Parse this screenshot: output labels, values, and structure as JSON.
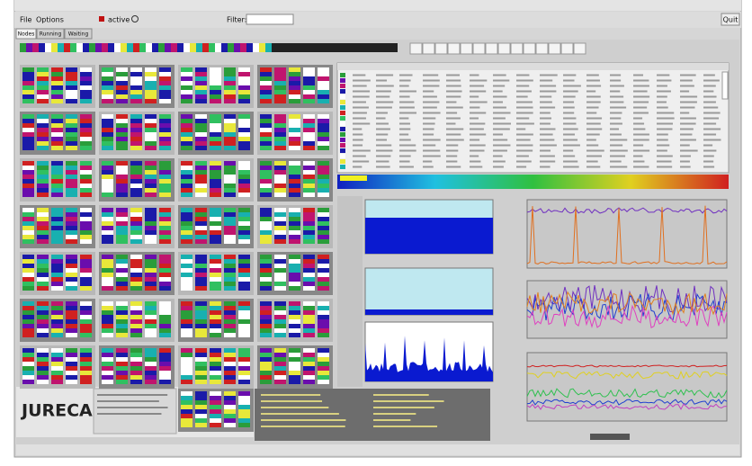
{
  "menu": {
    "items": [
      "File",
      "Options"
    ]
  },
  "toolbar": {
    "active_label": "active",
    "filter_label": "Filter:",
    "quit": "Quit"
  },
  "tabs": [
    "Nodes",
    "Running",
    "Waiting"
  ],
  "system": {
    "name": "JURECA"
  }
}
